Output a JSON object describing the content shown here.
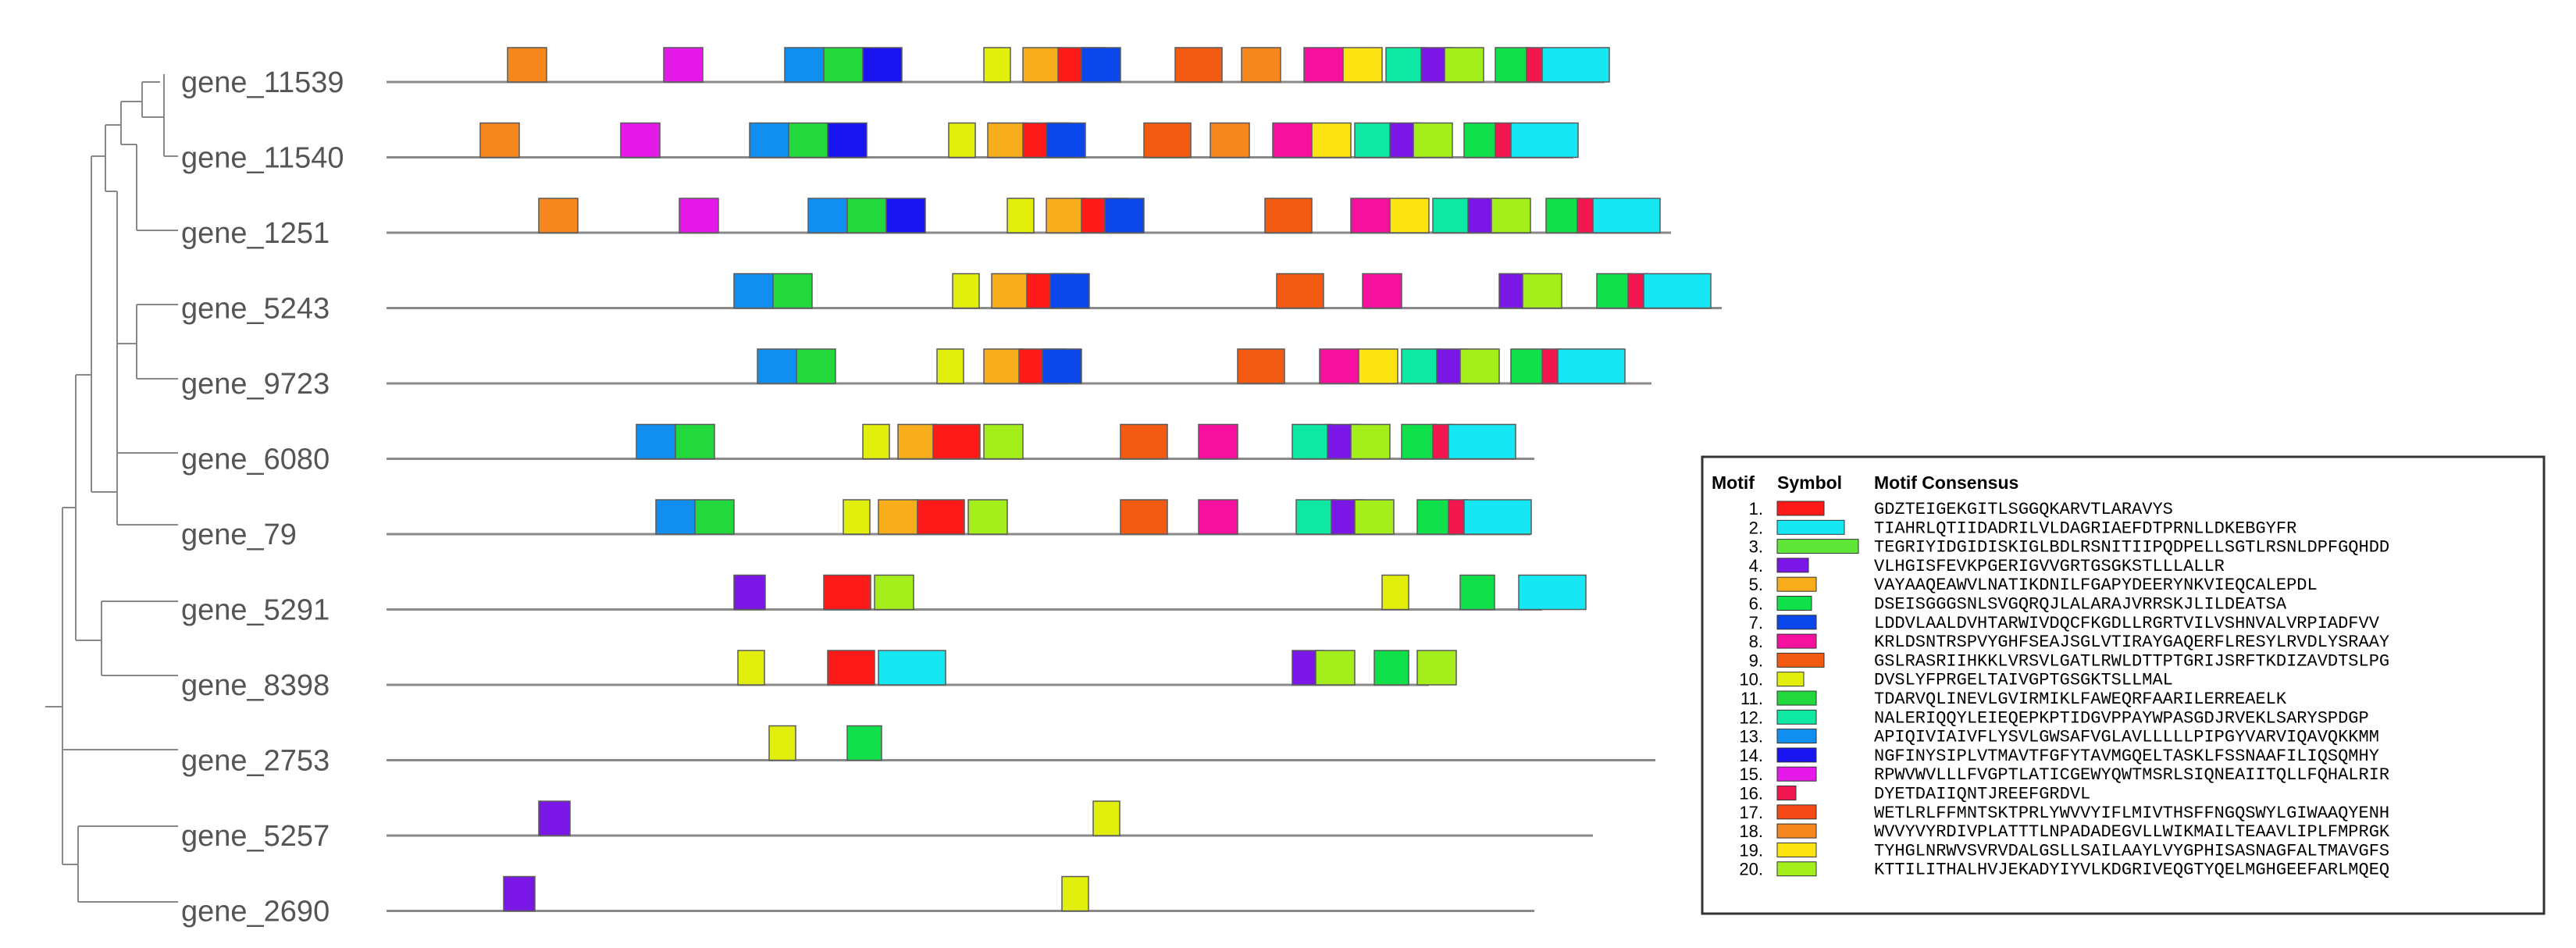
{
  "genes": [
    {
      "label": "gene_11539",
      "length": 1560,
      "motifs": [
        {
          "m": 18,
          "pos": 155
        },
        {
          "m": 15,
          "pos": 355
        },
        {
          "m": 13,
          "pos": 510
        },
        {
          "m": 11,
          "pos": 560
        },
        {
          "m": 14,
          "pos": 610
        },
        {
          "m": 10,
          "pos": 765
        },
        {
          "m": 5,
          "pos": 815
        },
        {
          "m": 1,
          "pos": 860
        },
        {
          "m": 7,
          "pos": 890
        },
        {
          "m": 9,
          "pos": 1010
        },
        {
          "m": 18,
          "pos": 1095
        },
        {
          "m": 8,
          "pos": 1175
        },
        {
          "m": 19,
          "pos": 1225
        },
        {
          "m": 12,
          "pos": 1280
        },
        {
          "m": 4,
          "pos": 1325
        },
        {
          "m": 20,
          "pos": 1355
        },
        {
          "m": 6,
          "pos": 1420
        },
        {
          "m": 16,
          "pos": 1460
        },
        {
          "m": 2,
          "pos": 1480
        }
      ]
    },
    {
      "label": "gene_11540",
      "length": 1520,
      "motifs": [
        {
          "m": 18,
          "pos": 120
        },
        {
          "m": 15,
          "pos": 300
        },
        {
          "m": 13,
          "pos": 465
        },
        {
          "m": 11,
          "pos": 515
        },
        {
          "m": 14,
          "pos": 565
        },
        {
          "m": 10,
          "pos": 720
        },
        {
          "m": 5,
          "pos": 770
        },
        {
          "m": 1,
          "pos": 815
        },
        {
          "m": 7,
          "pos": 845
        },
        {
          "m": 9,
          "pos": 970
        },
        {
          "m": 18,
          "pos": 1055
        },
        {
          "m": 8,
          "pos": 1135
        },
        {
          "m": 19,
          "pos": 1185
        },
        {
          "m": 12,
          "pos": 1240
        },
        {
          "m": 4,
          "pos": 1285
        },
        {
          "m": 20,
          "pos": 1315
        },
        {
          "m": 6,
          "pos": 1380
        },
        {
          "m": 16,
          "pos": 1420
        },
        {
          "m": 2,
          "pos": 1440
        }
      ]
    },
    {
      "label": "gene_1251",
      "length": 1645,
      "motifs": [
        {
          "m": 18,
          "pos": 195
        },
        {
          "m": 15,
          "pos": 375
        },
        {
          "m": 13,
          "pos": 540
        },
        {
          "m": 11,
          "pos": 590
        },
        {
          "m": 14,
          "pos": 640
        },
        {
          "m": 10,
          "pos": 795
        },
        {
          "m": 5,
          "pos": 845
        },
        {
          "m": 1,
          "pos": 890
        },
        {
          "m": 7,
          "pos": 920
        },
        {
          "m": 9,
          "pos": 1125
        },
        {
          "m": 8,
          "pos": 1235
        },
        {
          "m": 19,
          "pos": 1285
        },
        {
          "m": 12,
          "pos": 1340
        },
        {
          "m": 4,
          "pos": 1385
        },
        {
          "m": 20,
          "pos": 1415
        },
        {
          "m": 6,
          "pos": 1485
        },
        {
          "m": 16,
          "pos": 1525
        },
        {
          "m": 2,
          "pos": 1545
        }
      ]
    },
    {
      "label": "gene_5243",
      "length": 1710,
      "motifs": [
        {
          "m": 13,
          "pos": 445
        },
        {
          "m": 11,
          "pos": 495
        },
        {
          "m": 10,
          "pos": 725
        },
        {
          "m": 5,
          "pos": 775
        },
        {
          "m": 1,
          "pos": 820
        },
        {
          "m": 7,
          "pos": 850
        },
        {
          "m": 9,
          "pos": 1140
        },
        {
          "m": 8,
          "pos": 1250
        },
        {
          "m": 4,
          "pos": 1425
        },
        {
          "m": 20,
          "pos": 1455
        },
        {
          "m": 6,
          "pos": 1550
        },
        {
          "m": 16,
          "pos": 1590
        },
        {
          "m": 2,
          "pos": 1610
        }
      ]
    },
    {
      "label": "gene_9723",
      "length": 1620,
      "motifs": [
        {
          "m": 13,
          "pos": 475
        },
        {
          "m": 11,
          "pos": 525
        },
        {
          "m": 10,
          "pos": 705
        },
        {
          "m": 5,
          "pos": 765
        },
        {
          "m": 1,
          "pos": 810
        },
        {
          "m": 7,
          "pos": 840
        },
        {
          "m": 9,
          "pos": 1090
        },
        {
          "m": 8,
          "pos": 1195
        },
        {
          "m": 19,
          "pos": 1245
        },
        {
          "m": 12,
          "pos": 1300
        },
        {
          "m": 4,
          "pos": 1345
        },
        {
          "m": 20,
          "pos": 1375
        },
        {
          "m": 6,
          "pos": 1440
        },
        {
          "m": 16,
          "pos": 1480
        },
        {
          "m": 2,
          "pos": 1500
        }
      ]
    },
    {
      "label": "gene_6080",
      "length": 1470,
      "motifs": [
        {
          "m": 13,
          "pos": 320
        },
        {
          "m": 11,
          "pos": 370
        },
        {
          "m": 10,
          "pos": 610
        },
        {
          "m": 5,
          "pos": 655
        },
        {
          "m": 1,
          "pos": 700
        },
        {
          "m": 20,
          "pos": 765
        },
        {
          "m": 9,
          "pos": 940
        },
        {
          "m": 8,
          "pos": 1040
        },
        {
          "m": 12,
          "pos": 1160
        },
        {
          "m": 4,
          "pos": 1205
        },
        {
          "m": 20,
          "pos": 1235
        },
        {
          "m": 6,
          "pos": 1300
        },
        {
          "m": 16,
          "pos": 1340
        },
        {
          "m": 2,
          "pos": 1360
        }
      ]
    },
    {
      "label": "gene_79",
      "length": 1465,
      "motifs": [
        {
          "m": 13,
          "pos": 345
        },
        {
          "m": 11,
          "pos": 395
        },
        {
          "m": 10,
          "pos": 585
        },
        {
          "m": 5,
          "pos": 630
        },
        {
          "m": 1,
          "pos": 680
        },
        {
          "m": 20,
          "pos": 745
        },
        {
          "m": 9,
          "pos": 940
        },
        {
          "m": 8,
          "pos": 1040
        },
        {
          "m": 12,
          "pos": 1165
        },
        {
          "m": 4,
          "pos": 1210
        },
        {
          "m": 20,
          "pos": 1240
        },
        {
          "m": 6,
          "pos": 1320
        },
        {
          "m": 16,
          "pos": 1360
        },
        {
          "m": 2,
          "pos": 1380
        }
      ]
    },
    {
      "label": "gene_5291",
      "length": 1480,
      "motifs": [
        {
          "m": 4,
          "pos": 445
        },
        {
          "m": 1,
          "pos": 560
        },
        {
          "m": 20,
          "pos": 625
        },
        {
          "m": 10,
          "pos": 1275
        },
        {
          "m": 6,
          "pos": 1375
        },
        {
          "m": 2,
          "pos": 1450
        }
      ]
    },
    {
      "label": "gene_8398",
      "length": 1335,
      "motifs": [
        {
          "m": 10,
          "pos": 450
        },
        {
          "m": 1,
          "pos": 565
        },
        {
          "m": 2,
          "pos": 630
        },
        {
          "m": 4,
          "pos": 1160
        },
        {
          "m": 20,
          "pos": 1190
        },
        {
          "m": 6,
          "pos": 1265
        },
        {
          "m": 20,
          "pos": 1320
        }
      ]
    },
    {
      "label": "gene_2753",
      "length": 1625,
      "motifs": [
        {
          "m": 10,
          "pos": 490
        },
        {
          "m": 6,
          "pos": 590
        }
      ]
    },
    {
      "label": "gene_5257",
      "length": 1545,
      "motifs": [
        {
          "m": 4,
          "pos": 195
        },
        {
          "m": 10,
          "pos": 905
        }
      ]
    },
    {
      "label": "gene_2690",
      "length": 1470,
      "motifs": [
        {
          "m": 4,
          "pos": 150
        },
        {
          "m": 10,
          "pos": 865
        }
      ]
    }
  ],
  "legend": {
    "headers": {
      "motif": "Motif",
      "symbol": "Symbol",
      "consensus": "Motif Consensus"
    },
    "rows": [
      {
        "num": "1.",
        "color": "#ff1a1a",
        "size": 60,
        "consensus": "GDZTEIGEKGITLSGGQKARVTLARAVYS"
      },
      {
        "num": "2.",
        "color": "#15e8f2",
        "size": 86,
        "consensus": "TIAHRLQTIIDADRILVLDAGRIAEFDTPRNLLDKEBGYFR"
      },
      {
        "num": "3.",
        "color": "#5fe639",
        "size": 104,
        "consensus": "TEGRIYIDGIDISKIGLBDLRSNITIIPQDPELLSGTLRSNLDPFGQHDD"
      },
      {
        "num": "4.",
        "color": "#7b17e6",
        "size": 40,
        "consensus": "VLHGISFEVKPGERIGVVGRTGSGKSTLLLALLR"
      },
      {
        "num": "5.",
        "color": "#f7ad1c",
        "size": 50,
        "consensus": "VAYAAQEAWVLNATIKDNILFGAPYDEERYNKVIEQCALEPDL"
      },
      {
        "num": "6.",
        "color": "#10e04a",
        "size": 44,
        "consensus": "DSEISGGGSNLSVGQRQJLALARAJVRRSKJLILDEATSA"
      },
      {
        "num": "7.",
        "color": "#0b46ea",
        "size": 50,
        "consensus": "LDDVLAALDVHTARWIVDQCFKGDLLRGRTVILVSHNVALVRPIADFVV"
      },
      {
        "num": "8.",
        "color": "#f5109d",
        "size": 50,
        "consensus": "KRLDSNTRSPVYGHFSEAJSGLVTIRAYGAQERFLRESYLRVDLYSRAAY"
      },
      {
        "num": "9.",
        "color": "#f35a12",
        "size": 60,
        "consensus": "GSLRASRIIHKKLVRSVLGATLRWLDTTPTGRIJSRFTKDIZAVDTSLPG"
      },
      {
        "num": "10.",
        "color": "#e2ef0c",
        "size": 34,
        "consensus": "DVSLYFPRGELTAIVGPTGSGKTSLLMAL"
      },
      {
        "num": "11.",
        "color": "#22d83c",
        "size": 50,
        "consensus": "TDARVQLINEVLGVIRMIKLFAWEQRFAARILERREAELK"
      },
      {
        "num": "12.",
        "color": "#0ee8a2",
        "size": 50,
        "consensus": "NALERIQQYLEIEQEPKPTIDGVPPAYWPASGDJRVEKLSARYSPDGP"
      },
      {
        "num": "13.",
        "color": "#108ff0",
        "size": 50,
        "consensus": "APIQIVIAIVFLYSVLGWSAFVGLAVLLLLLPIPGYVARVIQAVQKKMM"
      },
      {
        "num": "14.",
        "color": "#1a14f0",
        "size": 50,
        "consensus": "NGFINYSIPLVTMAVTFGFYTAVMGQELTASKLFSSNAAFILIQSQMHY"
      },
      {
        "num": "15.",
        "color": "#e51ae9",
        "size": 50,
        "consensus": "RPWVWVLLLFVGPTLATICGEWYQWTMSRLSIQNEAIITQLLFQHALRIR"
      },
      {
        "num": "16.",
        "color": "#f2174f",
        "size": 24,
        "consensus": "DYETDAIIQNTJREEFGRDVL"
      },
      {
        "num": "17.",
        "color": "#f34a18",
        "size": 50,
        "consensus": "WETLRLFFMNTSKTPRLYWVVYIFLMIVTHSFFNGQSWYLGIWAAQYENH"
      },
      {
        "num": "18.",
        "color": "#f6861e",
        "size": 50,
        "consensus": "WVVYVYRDIVPLATTTLNPADADEGVLLWIKMAILTEAAVLIPLFMPRGK"
      },
      {
        "num": "19.",
        "color": "#fbe412",
        "size": 50,
        "consensus": "TYHGLNRWVSVRVDALGSLLSAILAAYLVYGPHISASNAGFALTMAVGFS"
      },
      {
        "num": "20.",
        "color": "#a4ee1c",
        "size": 50,
        "consensus": "KTTILITHALHVJEKADYIYVLKDGRIVEQGTYQELMGHGEEFARLMQEQ"
      }
    ]
  }
}
